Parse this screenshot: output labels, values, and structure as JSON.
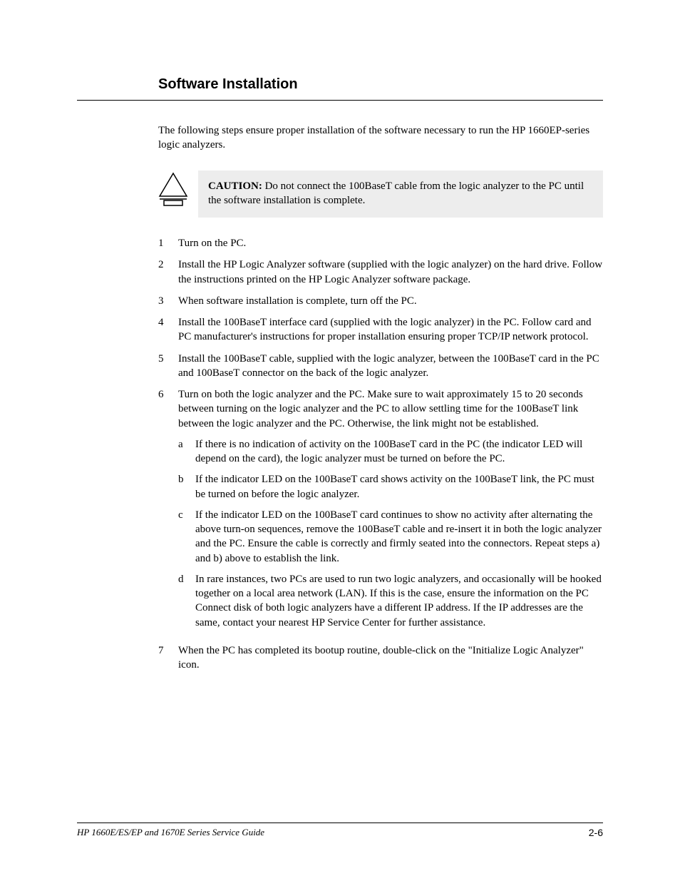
{
  "section": {
    "title": "Software Installation",
    "intro": "The following steps ensure proper installation of the software necessary to run the HP 1660EP-series logic analyzers."
  },
  "caution": {
    "label": "CAUTION:",
    "body": "Do not connect the 100BaseT cable from the logic analyzer to the PC until the software installation is complete."
  },
  "steps": [
    {
      "num": "1",
      "text": "Turn on the PC."
    },
    {
      "num": "2",
      "text": "Install the HP Logic Analyzer software (supplied with the logic analyzer) on the hard drive. Follow the instructions printed on the HP Logic Analyzer software package."
    },
    {
      "num": "3",
      "text": "When software installation is complete, turn off the PC."
    },
    {
      "num": "4",
      "text": "Install the 100BaseT interface card (supplied with the logic analyzer) in the PC. Follow card and PC manufacturer's instructions for proper installation ensuring proper TCP/IP network protocol."
    },
    {
      "num": "5",
      "text": "Install the 100BaseT cable, supplied with the logic analyzer, between the 100BaseT card in the PC and 100BaseT connector on the back of the logic analyzer."
    },
    {
      "num": "6",
      "text": "Turn on both the logic analyzer and the PC. Make sure to wait approximately 15 to 20 seconds between turning on the logic analyzer and the PC to allow settling time for the 100BaseT link between the logic analyzer and the PC. Otherwise, the link might not be established.",
      "substeps": [
        {
          "letter": "a",
          "text": "If there is no indication of activity on the 100BaseT card in the PC (the indicator LED will depend on the card), the logic analyzer must be turned on before the PC."
        },
        {
          "letter": "b",
          "text": "If the indicator LED on the 100BaseT card shows activity on the 100BaseT link, the PC must be turned on before the logic analyzer."
        },
        {
          "letter": "c",
          "text": "If the indicator LED on the 100BaseT card continues to show no activity after alternating the above turn-on sequences, remove the 100BaseT cable and re-insert it in both the logic analyzer and the PC. Ensure the cable is correctly and firmly seated into the connectors. Repeat steps a) and b) above to establish the link."
        },
        {
          "letter": "d",
          "text": "In rare instances, two PCs are used to run two logic analyzers, and occasionally will be hooked together on a local area network (LAN). If this is the case, ensure the information on the PC Connect disk of both logic analyzers have a different IP address. If the IP addresses are the same, contact your nearest HP Service Center for further assistance."
        }
      ]
    },
    {
      "num": "7",
      "text": "When the PC has completed its bootup routine, double-click on the \"Initialize Logic Analyzer\" icon."
    }
  ],
  "footer": {
    "left": "HP 1660E/ES/EP and 1670E Series Service Guide",
    "page": "2-6"
  },
  "colors": {
    "background": "#ffffff",
    "text": "#000000",
    "caution_bg": "#ededed",
    "rule": "#000000"
  }
}
